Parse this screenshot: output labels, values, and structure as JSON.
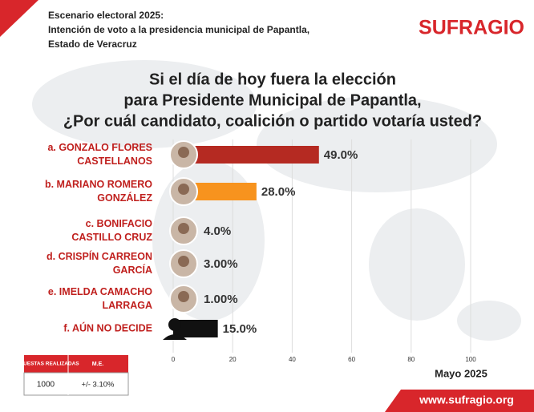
{
  "chart_data": {
    "type": "bar",
    "orientation": "horizontal",
    "header": [
      "Escenario electoral 2025:",
      "Intención de voto a la presidencia municipal de Papantla,",
      "Estado de Veracruz"
    ],
    "brand": "SUFRAGIO",
    "title": [
      "Si el día de hoy fuera la elección",
      "para Presidente Municipal de Papantla,",
      "¿Por cuál candidato, coalición o partido votaría usted?"
    ],
    "categories": [
      [
        "a. GONZALO FLORES",
        "CASTELLANOS"
      ],
      [
        "b. MARIANO ROMERO",
        "GONZÁLEZ"
      ],
      [
        "c. BONIFACIO",
        "CASTILLO CRUZ"
      ],
      [
        "d. CRISPÍN CARREON",
        "GARCÍA"
      ],
      [
        "e. IMELDA CAMACHO",
        "LARRAGA"
      ],
      [
        "f. AÚN NO DECIDE"
      ]
    ],
    "values": [
      49.0,
      28.0,
      4.0,
      3.0,
      1.0,
      15.0
    ],
    "value_labels": [
      "49.0%",
      "28.0%",
      "4.0%",
      "3.00%",
      "1.00%",
      "15.0%"
    ],
    "colors": [
      "#b52a22",
      "#f7931e",
      "#f2c500",
      "#d8262b",
      "#1f4e9c",
      "#111111"
    ],
    "xlim": [
      0,
      100
    ],
    "xticks": [
      0,
      20,
      40,
      60,
      80,
      100
    ],
    "grid": true,
    "date": "Mayo 2025",
    "table": {
      "headers": [
        "ENCUESTAS REALIZADAS",
        "M.E."
      ],
      "row": [
        "1000",
        "+/- 3.10%"
      ]
    },
    "website": "www.sufragio.org"
  }
}
